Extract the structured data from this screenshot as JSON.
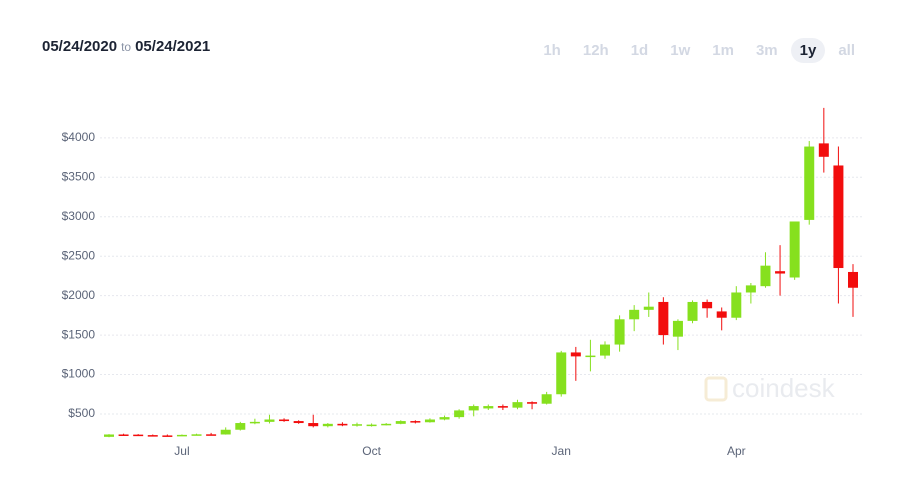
{
  "header": {
    "start": "05/24/2020",
    "separator": "to",
    "end": "05/24/2021"
  },
  "ranges": [
    "1h",
    "12h",
    "1d",
    "1w",
    "1m",
    "3m",
    "1y",
    "all"
  ],
  "selected_range": 6,
  "watermark": "coindesk",
  "chart_data": {
    "type": "candlestick",
    "categories": [
      null,
      null,
      null,
      null,
      null,
      "Jul",
      null,
      null,
      null,
      null,
      null,
      null,
      null,
      null,
      null,
      null,
      null,
      null,
      "Oct",
      null,
      null,
      null,
      null,
      null,
      null,
      null,
      null,
      null,
      null,
      null,
      null,
      "Jan",
      null,
      null,
      null,
      null,
      null,
      null,
      null,
      null,
      null,
      null,
      null,
      "Apr",
      null,
      null,
      null,
      null,
      null,
      null,
      null,
      null
    ],
    "open": [
      210,
      240,
      238,
      232,
      228,
      225,
      235,
      242,
      240,
      300,
      385,
      400,
      430,
      410,
      385,
      345,
      375,
      355,
      350,
      365,
      375,
      410,
      395,
      430,
      460,
      545,
      570,
      600,
      580,
      650,
      630,
      750,
      1280,
      1230,
      1240,
      1380,
      1700,
      1820,
      1920,
      1480,
      1680,
      1920,
      1800,
      1720,
      2040,
      2120,
      2310,
      2230,
      2960,
      3930,
      3650,
      2300
    ],
    "high": [
      245,
      250,
      245,
      240,
      240,
      240,
      250,
      260,
      330,
      400,
      440,
      490,
      445,
      420,
      490,
      385,
      395,
      390,
      380,
      385,
      420,
      420,
      445,
      480,
      560,
      620,
      620,
      620,
      680,
      660,
      780,
      1300,
      1350,
      1440,
      1420,
      1750,
      1880,
      2040,
      1980,
      1700,
      1940,
      1950,
      1850,
      2120,
      2160,
      2550,
      2640,
      2940,
      3960,
      4380,
      3890,
      2400
    ],
    "low": [
      205,
      225,
      225,
      222,
      220,
      220,
      230,
      235,
      238,
      290,
      370,
      380,
      400,
      375,
      330,
      330,
      345,
      340,
      340,
      355,
      370,
      380,
      390,
      420,
      440,
      470,
      550,
      550,
      560,
      560,
      620,
      720,
      920,
      1040,
      1200,
      1290,
      1550,
      1730,
      1380,
      1310,
      1650,
      1720,
      1560,
      1690,
      1900,
      2100,
      2000,
      2200,
      2900,
      3560,
      1900,
      1730
    ],
    "close": [
      240,
      238,
      232,
      228,
      225,
      235,
      242,
      238,
      300,
      385,
      400,
      430,
      410,
      385,
      345,
      375,
      355,
      370,
      365,
      375,
      410,
      395,
      430,
      460,
      545,
      600,
      600,
      580,
      650,
      630,
      750,
      1280,
      1230,
      1240,
      1380,
      1700,
      1820,
      1860,
      1500,
      1680,
      1920,
      1840,
      1720,
      2040,
      2130,
      2380,
      2280,
      2940,
      3890,
      3760,
      2350,
      2100
    ],
    "up_color": "#86e01e",
    "down_color": "#f20d0d",
    "ylim": [
      170,
      4480
    ],
    "yticks": [
      {
        "value": 500,
        "label": "$500"
      },
      {
        "value": 1000,
        "label": "$1000"
      },
      {
        "value": 1500,
        "label": "$1500"
      },
      {
        "value": 2000,
        "label": "$2000"
      },
      {
        "value": 2500,
        "label": "$2500"
      },
      {
        "value": 3000,
        "label": "$3000"
      },
      {
        "value": 3500,
        "label": "$3500"
      },
      {
        "value": 4000,
        "label": "$4000"
      }
    ],
    "grid": true
  }
}
